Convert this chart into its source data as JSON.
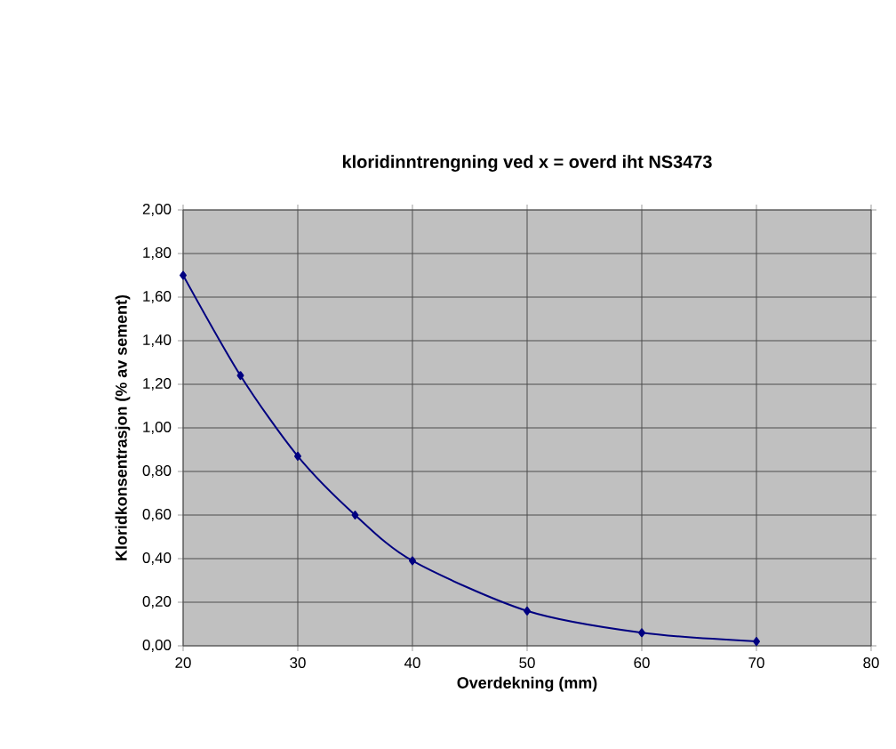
{
  "chart_data": {
    "type": "line",
    "title": "kloridinntrengning ved x = overd iht NS3473",
    "xlabel": "Overdekning (mm)",
    "ylabel": "Kloridkonsentrasjon (% av sement)",
    "x": [
      20,
      25,
      30,
      35,
      40,
      50,
      60,
      70
    ],
    "series": [
      {
        "color": "#000080",
        "values": [
          1.7,
          1.24,
          0.87,
          0.6,
          0.39,
          0.16,
          0.06,
          0.02
        ]
      }
    ],
    "xlim": [
      20,
      80
    ],
    "xticks": [
      20,
      30,
      40,
      50,
      60,
      70,
      80
    ],
    "ylim": [
      0,
      2
    ],
    "yticks": [
      {
        "value": 0,
        "label": "0,00"
      },
      {
        "value": 0.2,
        "label": "0,20"
      },
      {
        "value": 0.4,
        "label": "0,40"
      },
      {
        "value": 0.6,
        "label": "0,60"
      },
      {
        "value": 0.8,
        "label": "0,80"
      },
      {
        "value": 1.0,
        "label": "1,00"
      },
      {
        "value": 1.2,
        "label": "1,20"
      },
      {
        "value": 1.4,
        "label": "1,40"
      },
      {
        "value": 1.6,
        "label": "1,60"
      },
      {
        "value": 1.8,
        "label": "1,80"
      },
      {
        "value": 2.0,
        "label": "2,00"
      }
    ],
    "grid": true,
    "marker": "diamond",
    "line_style": "solid"
  }
}
